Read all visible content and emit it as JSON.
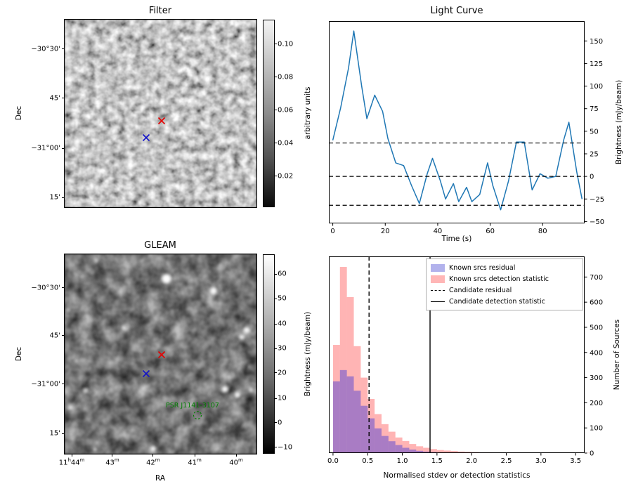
{
  "panels": {
    "filter": {
      "title": "Filter",
      "ylabel": "Dec",
      "yticks": [
        "-30°30'",
        "45'",
        "-31°00'",
        "15'"
      ],
      "colorbar": {
        "label": "arbitrary units",
        "ticks": [
          "0.10",
          "0.08",
          "0.06",
          "0.04",
          "0.02"
        ]
      },
      "markers": [
        {
          "name": "candidate",
          "symbol": "x",
          "color": "#e50000"
        },
        {
          "name": "known-source",
          "symbol": "x",
          "color": "#1414c8"
        }
      ]
    },
    "gleam": {
      "title": "GLEAM",
      "xlabel": "RA",
      "ylabel": "Dec",
      "xticks": [
        "11h44m",
        "43m",
        "42m",
        "41m",
        "40m"
      ],
      "yticks": [
        "-30°30'",
        "45'",
        "-31°00'",
        "15'"
      ],
      "colorbar": {
        "label": "Brightness (mJy/beam)",
        "ticks": [
          "60",
          "50",
          "40",
          "30",
          "20",
          "10",
          "0",
          "-10"
        ]
      },
      "source_label": "PSR J1141-3107",
      "source_label_color": "#008000",
      "markers": [
        {
          "name": "candidate",
          "symbol": "x",
          "color": "#e50000"
        },
        {
          "name": "known-source",
          "symbol": "x",
          "color": "#1414c8"
        }
      ]
    }
  },
  "chart_data": [
    {
      "type": "line",
      "title": "Light Curve",
      "xlabel": "Time (s)",
      "ylabel": "Brightness (mJy/beam)",
      "xlim": [
        -1.5,
        96
      ],
      "ylim": [
        -52,
        172
      ],
      "xticks": [
        0,
        20,
        40,
        60,
        80
      ],
      "yticks": [
        -50,
        -25,
        0,
        25,
        50,
        75,
        100,
        125,
        150
      ],
      "yaxis_side": "right",
      "grid": false,
      "line_color": "#1f77b4",
      "dashed_hlines": [
        37,
        0,
        -32
      ],
      "x": [
        0,
        3,
        6,
        8,
        11,
        13,
        16,
        19,
        21,
        24,
        27,
        30,
        33,
        36,
        38,
        41,
        43,
        46,
        48,
        51,
        53,
        56,
        59,
        61,
        64,
        67,
        70,
        73,
        76,
        79,
        82,
        85,
        88,
        90,
        93,
        95
      ],
      "y": [
        40,
        76,
        120,
        161,
        100,
        64,
        90,
        72,
        42,
        15,
        12,
        -10,
        -30,
        3,
        20,
        -5,
        -25,
        -8,
        -28,
        -12,
        -28,
        -20,
        15,
        -10,
        -37,
        -5,
        38,
        38,
        -15,
        3,
        -2,
        0,
        40,
        60,
        5,
        -25
      ]
    },
    {
      "type": "bar",
      "subtype": "histogram",
      "title": "",
      "xlabel": "Normalised stdev or detection statistics",
      "ylabel": "Number of Sources",
      "xlim": [
        -0.06,
        3.63
      ],
      "ylim": [
        0,
        782
      ],
      "xticks": [
        0.0,
        0.5,
        1.0,
        1.5,
        2.0,
        2.5,
        3.0,
        3.5
      ],
      "yticks": [
        0,
        100,
        200,
        300,
        400,
        500,
        600,
        700
      ],
      "yaxis_side": "right",
      "grid": false,
      "bin_start": 0,
      "bin_width": 0.1,
      "series": [
        {
          "name": "Known srcs residual",
          "fill": "rgba(40,40,220,0.4)",
          "counts": [
            285,
            330,
            305,
            248,
            188,
            138,
            98,
            68,
            47,
            32,
            21,
            14,
            9,
            6,
            4,
            2,
            1,
            1,
            0,
            0,
            0,
            0,
            0,
            0,
            0,
            0,
            0,
            0,
            0,
            0,
            0,
            0,
            0,
            0,
            0,
            0,
            0
          ]
        },
        {
          "name": "Known srcs detection statistic",
          "fill": "rgba(255,40,40,0.35)",
          "counts": [
            430,
            740,
            620,
            425,
            300,
            215,
            155,
            115,
            85,
            62,
            48,
            36,
            27,
            21,
            16,
            12,
            10,
            8,
            6,
            5,
            4,
            3,
            3,
            2,
            2,
            2,
            1,
            1,
            1,
            1,
            1,
            1,
            0,
            1,
            0,
            1,
            1
          ]
        }
      ],
      "vlines": [
        {
          "name": "Candidate residual",
          "x": 0.52,
          "style": "dashed"
        },
        {
          "name": "Candidate detection statistic",
          "x": 1.4,
          "style": "solid"
        }
      ],
      "legend_items": [
        {
          "label": "Known srcs residual",
          "swatch": "patch-blue"
        },
        {
          "label": "Known srcs detection statistic",
          "swatch": "patch-pink"
        },
        {
          "label": "Candidate residual",
          "swatch": "line-dashed"
        },
        {
          "label": "Candidate detection statistic",
          "swatch": "line-solid"
        }
      ]
    }
  ]
}
